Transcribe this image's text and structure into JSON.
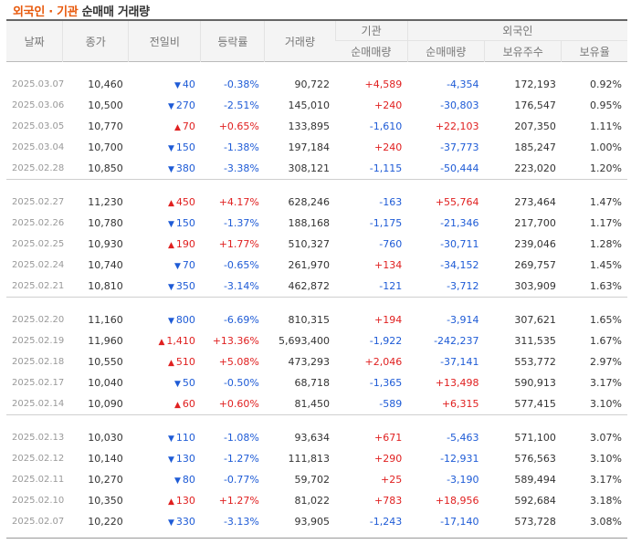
{
  "title": {
    "highlight": "외국인 · 기관",
    "rest": "순매매 거래량"
  },
  "headers": {
    "date": "날짜",
    "close": "종가",
    "change": "전일비",
    "rate": "등락률",
    "volume": "거래량",
    "inst_group": "기관",
    "inst_net": "순매매량",
    "foreign_group": "외국인",
    "foreign_net": "순매매량",
    "foreign_hold": "보유주수",
    "foreign_ratio": "보유율"
  },
  "groups": [
    {
      "rows": [
        {
          "date": "2025.03.07",
          "close": "10,460",
          "change": "40",
          "dir": "down",
          "rate": "-0.38%",
          "volume": "90,722",
          "inst": "+4,589",
          "foreign": "-4,354",
          "hold": "172,193",
          "ratio": "0.92%"
        },
        {
          "date": "2025.03.06",
          "close": "10,500",
          "change": "270",
          "dir": "down",
          "rate": "-2.51%",
          "volume": "145,010",
          "inst": "+240",
          "foreign": "-30,803",
          "hold": "176,547",
          "ratio": "0.95%"
        },
        {
          "date": "2025.03.05",
          "close": "10,770",
          "change": "70",
          "dir": "up",
          "rate": "+0.65%",
          "volume": "133,895",
          "inst": "-1,610",
          "foreign": "+22,103",
          "hold": "207,350",
          "ratio": "1.11%"
        },
        {
          "date": "2025.03.04",
          "close": "10,700",
          "change": "150",
          "dir": "down",
          "rate": "-1.38%",
          "volume": "197,184",
          "inst": "+240",
          "foreign": "-37,773",
          "hold": "185,247",
          "ratio": "1.00%"
        },
        {
          "date": "2025.02.28",
          "close": "10,850",
          "change": "380",
          "dir": "down",
          "rate": "-3.38%",
          "volume": "308,121",
          "inst": "-1,115",
          "foreign": "-50,444",
          "hold": "223,020",
          "ratio": "1.20%"
        }
      ]
    },
    {
      "rows": [
        {
          "date": "2025.02.27",
          "close": "11,230",
          "change": "450",
          "dir": "up",
          "rate": "+4.17%",
          "volume": "628,246",
          "inst": "-163",
          "foreign": "+55,764",
          "hold": "273,464",
          "ratio": "1.47%"
        },
        {
          "date": "2025.02.26",
          "close": "10,780",
          "change": "150",
          "dir": "down",
          "rate": "-1.37%",
          "volume": "188,168",
          "inst": "-1,175",
          "foreign": "-21,346",
          "hold": "217,700",
          "ratio": "1.17%"
        },
        {
          "date": "2025.02.25",
          "close": "10,930",
          "change": "190",
          "dir": "up",
          "rate": "+1.77%",
          "volume": "510,327",
          "inst": "-760",
          "foreign": "-30,711",
          "hold": "239,046",
          "ratio": "1.28%"
        },
        {
          "date": "2025.02.24",
          "close": "10,740",
          "change": "70",
          "dir": "down",
          "rate": "-0.65%",
          "volume": "261,970",
          "inst": "+134",
          "foreign": "-34,152",
          "hold": "269,757",
          "ratio": "1.45%"
        },
        {
          "date": "2025.02.21",
          "close": "10,810",
          "change": "350",
          "dir": "down",
          "rate": "-3.14%",
          "volume": "462,872",
          "inst": "-121",
          "foreign": "-3,712",
          "hold": "303,909",
          "ratio": "1.63%"
        }
      ]
    },
    {
      "rows": [
        {
          "date": "2025.02.20",
          "close": "11,160",
          "change": "800",
          "dir": "down",
          "rate": "-6.69%",
          "volume": "810,315",
          "inst": "+194",
          "foreign": "-3,914",
          "hold": "307,621",
          "ratio": "1.65%"
        },
        {
          "date": "2025.02.19",
          "close": "11,960",
          "change": "1,410",
          "dir": "up",
          "rate": "+13.36%",
          "volume": "5,693,400",
          "inst": "-1,922",
          "foreign": "-242,237",
          "hold": "311,535",
          "ratio": "1.67%"
        },
        {
          "date": "2025.02.18",
          "close": "10,550",
          "change": "510",
          "dir": "up",
          "rate": "+5.08%",
          "volume": "473,293",
          "inst": "+2,046",
          "foreign": "-37,141",
          "hold": "553,772",
          "ratio": "2.97%"
        },
        {
          "date": "2025.02.17",
          "close": "10,040",
          "change": "50",
          "dir": "down",
          "rate": "-0.50%",
          "volume": "68,718",
          "inst": "-1,365",
          "foreign": "+13,498",
          "hold": "590,913",
          "ratio": "3.17%"
        },
        {
          "date": "2025.02.14",
          "close": "10,090",
          "change": "60",
          "dir": "up",
          "rate": "+0.60%",
          "volume": "81,450",
          "inst": "-589",
          "foreign": "+6,315",
          "hold": "577,415",
          "ratio": "3.10%"
        }
      ]
    },
    {
      "rows": [
        {
          "date": "2025.02.13",
          "close": "10,030",
          "change": "110",
          "dir": "down",
          "rate": "-1.08%",
          "volume": "93,634",
          "inst": "+671",
          "foreign": "-5,463",
          "hold": "571,100",
          "ratio": "3.07%"
        },
        {
          "date": "2025.02.12",
          "close": "10,140",
          "change": "130",
          "dir": "down",
          "rate": "-1.27%",
          "volume": "111,813",
          "inst": "+290",
          "foreign": "-12,931",
          "hold": "576,563",
          "ratio": "3.10%"
        },
        {
          "date": "2025.02.11",
          "close": "10,270",
          "change": "80",
          "dir": "down",
          "rate": "-0.77%",
          "volume": "59,702",
          "inst": "+25",
          "foreign": "-3,190",
          "hold": "589,494",
          "ratio": "3.17%"
        },
        {
          "date": "2025.02.10",
          "close": "10,350",
          "change": "130",
          "dir": "up",
          "rate": "+1.27%",
          "volume": "81,022",
          "inst": "+783",
          "foreign": "+18,956",
          "hold": "592,684",
          "ratio": "3.18%"
        },
        {
          "date": "2025.02.07",
          "close": "10,220",
          "change": "330",
          "dir": "down",
          "rate": "-3.13%",
          "volume": "93,905",
          "inst": "-1,243",
          "foreign": "-17,140",
          "hold": "573,728",
          "ratio": "3.08%"
        }
      ]
    }
  ]
}
